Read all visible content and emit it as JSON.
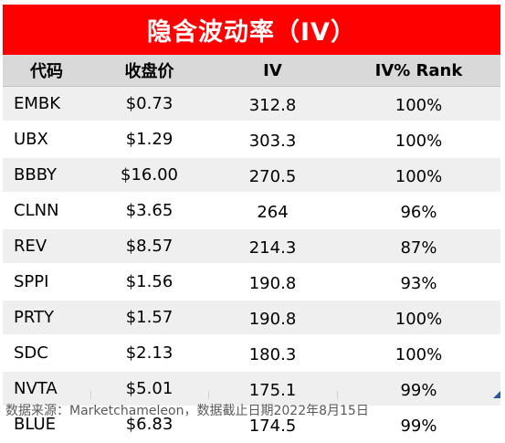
{
  "title": "隐含波动率（IV）",
  "columns": [
    "代码",
    "收盘价",
    "IV",
    "IV% Rank"
  ],
  "rows": [
    {
      "symbol": "EMBK",
      "close": "$0.73",
      "iv": "312.8",
      "rank": "100%"
    },
    {
      "symbol": "UBX",
      "close": "$1.29",
      "iv": "303.3",
      "rank": "100%"
    },
    {
      "symbol": "BBBY",
      "close": "$16.00",
      "iv": "270.5",
      "rank": "100%"
    },
    {
      "symbol": "CLNN",
      "close": "$3.65",
      "iv": "264",
      "rank": "96%"
    },
    {
      "symbol": "REV",
      "close": "$8.57",
      "iv": "214.3",
      "rank": "87%"
    },
    {
      "symbol": "SPPI",
      "close": "$1.56",
      "iv": "190.8",
      "rank": "93%"
    },
    {
      "symbol": "PRTY",
      "close": "$1.57",
      "iv": "190.8",
      "rank": "100%"
    },
    {
      "symbol": "SDC",
      "close": "$2.13",
      "iv": "180.3",
      "rank": "100%"
    },
    {
      "symbol": "NVTA",
      "close": "$5.01",
      "iv": "175.1",
      "rank": "99%"
    },
    {
      "symbol": "BLUE",
      "close": "$6.83",
      "iv": "174.5",
      "rank": "99%"
    }
  ],
  "footer": "数据来源：Marketchameleon，数据截止日期2022年8月15日",
  "colors": {
    "title_bg": "#fe0000",
    "header_bg": "#d9d9d9",
    "stripe": "#efefef"
  }
}
